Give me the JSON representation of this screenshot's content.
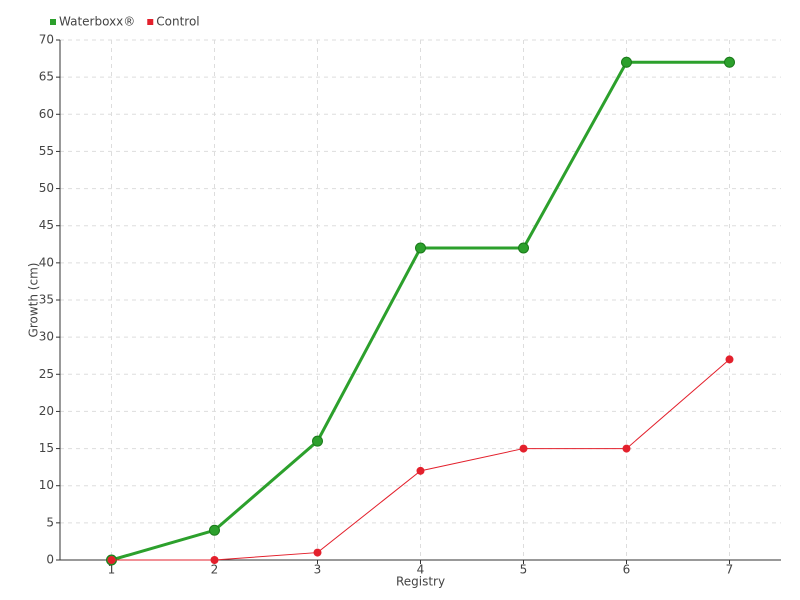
{
  "chart_data": {
    "type": "line",
    "x": [
      1,
      2,
      3,
      4,
      5,
      6,
      7
    ],
    "xlabel": "Registry",
    "ylabel": "Growth (cm)",
    "series": [
      {
        "name": "Waterboxx®",
        "color": "#2ca02c",
        "values": [
          0,
          4,
          16,
          42,
          42,
          67,
          67
        ]
      },
      {
        "name": "Control",
        "color": "#e3202c",
        "values": [
          0,
          0,
          1,
          12,
          15,
          15,
          27
        ]
      }
    ],
    "xlim": [
      0.5,
      7.5
    ],
    "xticks": [
      1,
      2,
      3,
      4,
      5,
      6,
      7
    ],
    "ylim": [
      0,
      70
    ],
    "yticks": [
      0,
      5,
      10,
      15,
      20,
      25,
      30,
      35,
      40,
      45,
      50,
      55,
      60,
      65,
      70
    ],
    "grid": true,
    "legend": "top-left"
  }
}
